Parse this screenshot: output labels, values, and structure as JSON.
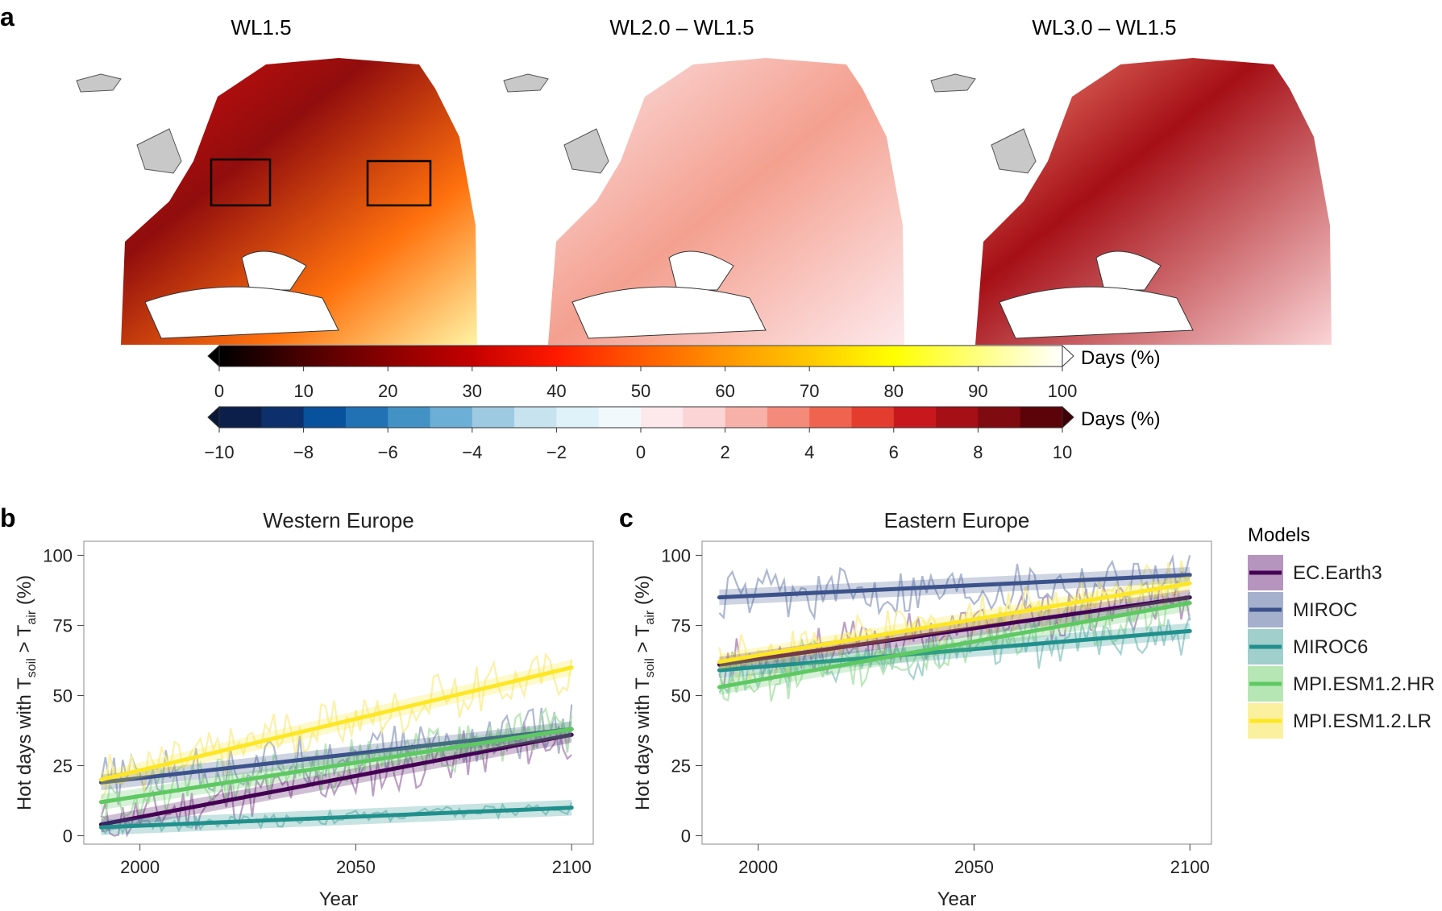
{
  "panels": {
    "a": {
      "letter": "a",
      "map_titles": [
        "WL1.5",
        "WL2.0 – WL1.5",
        "WL3.0 – WL1.5"
      ],
      "colorbar_abs": {
        "label": "Days (%)",
        "min": 0,
        "max": 100,
        "ticks": [
          "0",
          "10",
          "20",
          "30",
          "40",
          "50",
          "60",
          "70",
          "80",
          "90",
          "100"
        ],
        "colors": [
          "#000000",
          "#4a0000",
          "#8b0000",
          "#c40000",
          "#ff1a00",
          "#ff5a00",
          "#ff9500",
          "#ffc800",
          "#ffff00",
          "#ffff80",
          "#ffffff"
        ]
      },
      "colorbar_diff": {
        "label": "Days (%)",
        "min": -10,
        "max": 10,
        "ticks": [
          "−10",
          "−8",
          "−6",
          "−4",
          "−2",
          "0",
          "2",
          "4",
          "6",
          "8",
          "10"
        ],
        "colors": [
          "#0c1f4a",
          "#0d2f6b",
          "#08519c",
          "#2171b5",
          "#4292c6",
          "#6baed6",
          "#9ecae1",
          "#c6e3ef",
          "#dff1f9",
          "#f1f9fd",
          "#fde9ec",
          "#fbd4d6",
          "#f7b1a9",
          "#f48a7a",
          "#f0644f",
          "#e43d30",
          "#c9181d",
          "#a50f15",
          "#7f0a0f",
          "#5c0309"
        ]
      }
    },
    "b": {
      "letter": "b"
    },
    "c": {
      "letter": "c"
    }
  },
  "legend": {
    "title": "Models",
    "items": [
      {
        "name": "EC.Earth3",
        "color": "#440154",
        "light": "#b594bd"
      },
      {
        "name": "MIROC",
        "color": "#3b528b",
        "light": "#a5b0cc"
      },
      {
        "name": "MIROC6",
        "color": "#21908c",
        "light": "#a0cfcc"
      },
      {
        "name": "MPI.ESM1.2.HR",
        "color": "#5ec962",
        "light": "#b6e6b4"
      },
      {
        "name": "MPI.ESM1.2.LR",
        "color": "#fde725",
        "light": "#fbf09e"
      }
    ]
  },
  "chart_data": [
    {
      "type": "line",
      "panel": "b",
      "title": "Western Europe",
      "xlabel": "Year",
      "ylabel_main": "Hot days with T",
      "ylabel_sub1": "soil",
      "ylabel_gt": " > T",
      "ylabel_sub2": "air",
      "ylabel_unit": " (%)",
      "xlim": [
        1987,
        2105
      ],
      "ylim": [
        -3,
        105
      ],
      "xticks": [
        2000,
        2050,
        2100
      ],
      "yticks": [
        0,
        25,
        50,
        75,
        100
      ],
      "series": [
        {
          "name": "EC.Earth3",
          "trend": [
            [
              1991,
              4
            ],
            [
              2100,
              36
            ]
          ]
        },
        {
          "name": "MIROC",
          "trend": [
            [
              1991,
              19
            ],
            [
              2100,
              38
            ]
          ]
        },
        {
          "name": "MIROC6",
          "trend": [
            [
              1991,
              3
            ],
            [
              2100,
              10
            ]
          ]
        },
        {
          "name": "MPI.ESM1.2.HR",
          "trend": [
            [
              1991,
              12
            ],
            [
              2100,
              38
            ]
          ]
        },
        {
          "name": "MPI.ESM1.2.LR",
          "trend": [
            [
              1991,
              20
            ],
            [
              2100,
              60
            ]
          ]
        }
      ]
    },
    {
      "type": "line",
      "panel": "c",
      "title": "Eastern Europe",
      "xlabel": "Year",
      "ylabel_main": "Hot days with T",
      "ylabel_sub1": "soil",
      "ylabel_gt": " > T",
      "ylabel_sub2": "air",
      "ylabel_unit": " (%)",
      "xlim": [
        1987,
        2105
      ],
      "ylim": [
        -3,
        105
      ],
      "xticks": [
        2000,
        2050,
        2100
      ],
      "yticks": [
        0,
        25,
        50,
        75,
        100
      ],
      "series": [
        {
          "name": "EC.Earth3",
          "trend": [
            [
              1991,
              61
            ],
            [
              2100,
              85
            ]
          ]
        },
        {
          "name": "MIROC",
          "trend": [
            [
              1991,
              85
            ],
            [
              2100,
              93
            ]
          ]
        },
        {
          "name": "MIROC6",
          "trend": [
            [
              1991,
              59
            ],
            [
              2100,
              73
            ]
          ]
        },
        {
          "name": "MPI.ESM1.2.HR",
          "trend": [
            [
              1991,
              53
            ],
            [
              2100,
              83
            ]
          ]
        },
        {
          "name": "MPI.ESM1.2.LR",
          "trend": [
            [
              1991,
              62
            ],
            [
              2100,
              90
            ]
          ]
        }
      ]
    }
  ]
}
